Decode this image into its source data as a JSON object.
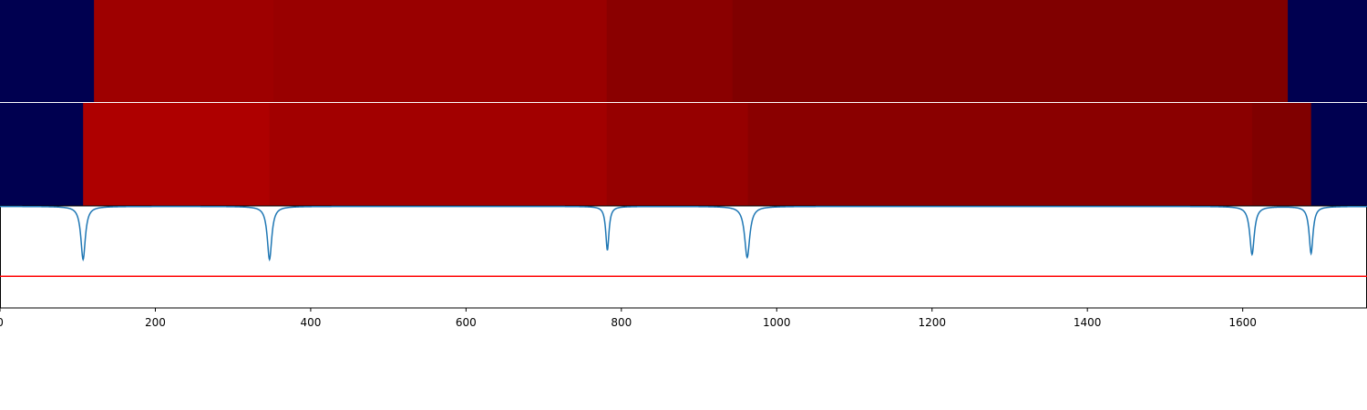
{
  "chart_data": [
    {
      "type": "heatmap",
      "segments": [
        {
          "start": 0,
          "end": 121,
          "color": "#000050"
        },
        {
          "start": 121,
          "end": 352,
          "color": "#9e0000"
        },
        {
          "start": 352,
          "end": 781,
          "color": "#990000"
        },
        {
          "start": 781,
          "end": 943,
          "color": "#8a0000"
        },
        {
          "start": 943,
          "end": 1658,
          "color": "#800000"
        },
        {
          "start": 1658,
          "end": 1760,
          "color": "#000050"
        }
      ]
    },
    {
      "type": "heatmap",
      "segments": [
        {
          "start": 0,
          "end": 107,
          "color": "#000050"
        },
        {
          "start": 107,
          "end": 347,
          "color": "#ae0000"
        },
        {
          "start": 347,
          "end": 781,
          "color": "#a20000"
        },
        {
          "start": 781,
          "end": 963,
          "color": "#960000"
        },
        {
          "start": 963,
          "end": 1612,
          "color": "#8a0000"
        },
        {
          "start": 1612,
          "end": 1688,
          "color": "#800000"
        },
        {
          "start": 1688,
          "end": 1760,
          "color": "#000050"
        }
      ]
    },
    {
      "type": "line",
      "xlim": [
        0,
        1760
      ],
      "ylim": [
        0,
        1
      ],
      "xticks": [
        0,
        200,
        400,
        600,
        800,
        1000,
        1200,
        1400,
        1600
      ],
      "baseline": 0.995,
      "dips": [
        {
          "x": 107,
          "depth": 0.52,
          "width": 3.5
        },
        {
          "x": 347,
          "depth": 0.52,
          "width": 3.5
        },
        {
          "x": 782,
          "depth": 0.43,
          "width": 2.5
        },
        {
          "x": 962,
          "depth": 0.5,
          "width": 4
        },
        {
          "x": 1612,
          "depth": 0.47,
          "width": 3.5
        },
        {
          "x": 1688,
          "depth": 0.46,
          "width": 3
        }
      ],
      "threshold": 0.31,
      "line_color": "#1f77b4",
      "threshold_color": "#ff0000"
    }
  ]
}
